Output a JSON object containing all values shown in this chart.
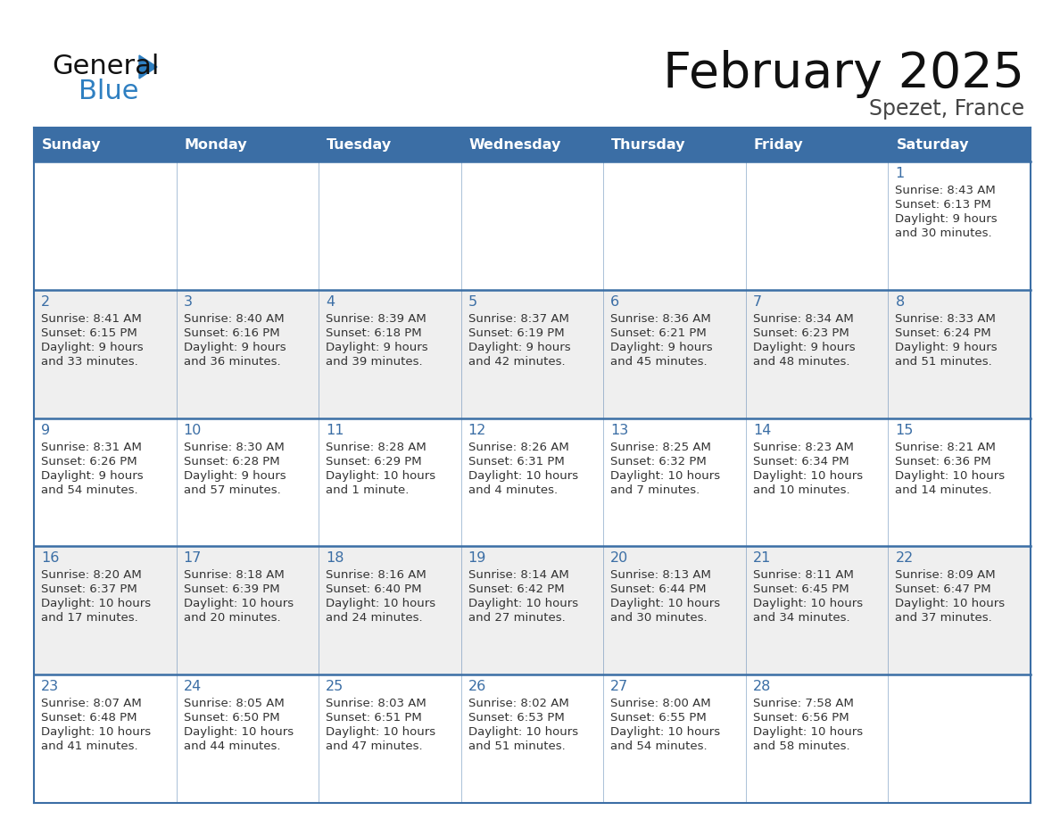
{
  "title": "February 2025",
  "subtitle": "Spezet, France",
  "header_bg": "#3b6ea5",
  "header_text_color": "#ffffff",
  "day_names": [
    "Sunday",
    "Monday",
    "Tuesday",
    "Wednesday",
    "Thursday",
    "Friday",
    "Saturday"
  ],
  "row_bg": [
    "#ffffff",
    "#efefef",
    "#ffffff",
    "#efefef",
    "#ffffff"
  ],
  "cell_border_color": "#3b6ea5",
  "date_color": "#3b6ea5",
  "text_color": "#333333",
  "logo_general_color": "#111111",
  "logo_blue_color": "#2e7fc1",
  "logo_triangle_color": "#2e7fc1",
  "calendar": [
    [
      null,
      null,
      null,
      null,
      null,
      null,
      {
        "day": "1",
        "sunrise": "8:43 AM",
        "sunset": "6:13 PM",
        "daylight_line1": "Daylight: 9 hours",
        "daylight_line2": "and 30 minutes."
      }
    ],
    [
      {
        "day": "2",
        "sunrise": "8:41 AM",
        "sunset": "6:15 PM",
        "daylight_line1": "Daylight: 9 hours",
        "daylight_line2": "and 33 minutes."
      },
      {
        "day": "3",
        "sunrise": "8:40 AM",
        "sunset": "6:16 PM",
        "daylight_line1": "Daylight: 9 hours",
        "daylight_line2": "and 36 minutes."
      },
      {
        "day": "4",
        "sunrise": "8:39 AM",
        "sunset": "6:18 PM",
        "daylight_line1": "Daylight: 9 hours",
        "daylight_line2": "and 39 minutes."
      },
      {
        "day": "5",
        "sunrise": "8:37 AM",
        "sunset": "6:19 PM",
        "daylight_line1": "Daylight: 9 hours",
        "daylight_line2": "and 42 minutes."
      },
      {
        "day": "6",
        "sunrise": "8:36 AM",
        "sunset": "6:21 PM",
        "daylight_line1": "Daylight: 9 hours",
        "daylight_line2": "and 45 minutes."
      },
      {
        "day": "7",
        "sunrise": "8:34 AM",
        "sunset": "6:23 PM",
        "daylight_line1": "Daylight: 9 hours",
        "daylight_line2": "and 48 minutes."
      },
      {
        "day": "8",
        "sunrise": "8:33 AM",
        "sunset": "6:24 PM",
        "daylight_line1": "Daylight: 9 hours",
        "daylight_line2": "and 51 minutes."
      }
    ],
    [
      {
        "day": "9",
        "sunrise": "8:31 AM",
        "sunset": "6:26 PM",
        "daylight_line1": "Daylight: 9 hours",
        "daylight_line2": "and 54 minutes."
      },
      {
        "day": "10",
        "sunrise": "8:30 AM",
        "sunset": "6:28 PM",
        "daylight_line1": "Daylight: 9 hours",
        "daylight_line2": "and 57 minutes."
      },
      {
        "day": "11",
        "sunrise": "8:28 AM",
        "sunset": "6:29 PM",
        "daylight_line1": "Daylight: 10 hours",
        "daylight_line2": "and 1 minute."
      },
      {
        "day": "12",
        "sunrise": "8:26 AM",
        "sunset": "6:31 PM",
        "daylight_line1": "Daylight: 10 hours",
        "daylight_line2": "and 4 minutes."
      },
      {
        "day": "13",
        "sunrise": "8:25 AM",
        "sunset": "6:32 PM",
        "daylight_line1": "Daylight: 10 hours",
        "daylight_line2": "and 7 minutes."
      },
      {
        "day": "14",
        "sunrise": "8:23 AM",
        "sunset": "6:34 PM",
        "daylight_line1": "Daylight: 10 hours",
        "daylight_line2": "and 10 minutes."
      },
      {
        "day": "15",
        "sunrise": "8:21 AM",
        "sunset": "6:36 PM",
        "daylight_line1": "Daylight: 10 hours",
        "daylight_line2": "and 14 minutes."
      }
    ],
    [
      {
        "day": "16",
        "sunrise": "8:20 AM",
        "sunset": "6:37 PM",
        "daylight_line1": "Daylight: 10 hours",
        "daylight_line2": "and 17 minutes."
      },
      {
        "day": "17",
        "sunrise": "8:18 AM",
        "sunset": "6:39 PM",
        "daylight_line1": "Daylight: 10 hours",
        "daylight_line2": "and 20 minutes."
      },
      {
        "day": "18",
        "sunrise": "8:16 AM",
        "sunset": "6:40 PM",
        "daylight_line1": "Daylight: 10 hours",
        "daylight_line2": "and 24 minutes."
      },
      {
        "day": "19",
        "sunrise": "8:14 AM",
        "sunset": "6:42 PM",
        "daylight_line1": "Daylight: 10 hours",
        "daylight_line2": "and 27 minutes."
      },
      {
        "day": "20",
        "sunrise": "8:13 AM",
        "sunset": "6:44 PM",
        "daylight_line1": "Daylight: 10 hours",
        "daylight_line2": "and 30 minutes."
      },
      {
        "day": "21",
        "sunrise": "8:11 AM",
        "sunset": "6:45 PM",
        "daylight_line1": "Daylight: 10 hours",
        "daylight_line2": "and 34 minutes."
      },
      {
        "day": "22",
        "sunrise": "8:09 AM",
        "sunset": "6:47 PM",
        "daylight_line1": "Daylight: 10 hours",
        "daylight_line2": "and 37 minutes."
      }
    ],
    [
      {
        "day": "23",
        "sunrise": "8:07 AM",
        "sunset": "6:48 PM",
        "daylight_line1": "Daylight: 10 hours",
        "daylight_line2": "and 41 minutes."
      },
      {
        "day": "24",
        "sunrise": "8:05 AM",
        "sunset": "6:50 PM",
        "daylight_line1": "Daylight: 10 hours",
        "daylight_line2": "and 44 minutes."
      },
      {
        "day": "25",
        "sunrise": "8:03 AM",
        "sunset": "6:51 PM",
        "daylight_line1": "Daylight: 10 hours",
        "daylight_line2": "and 47 minutes."
      },
      {
        "day": "26",
        "sunrise": "8:02 AM",
        "sunset": "6:53 PM",
        "daylight_line1": "Daylight: 10 hours",
        "daylight_line2": "and 51 minutes."
      },
      {
        "day": "27",
        "sunrise": "8:00 AM",
        "sunset": "6:55 PM",
        "daylight_line1": "Daylight: 10 hours",
        "daylight_line2": "and 54 minutes."
      },
      {
        "day": "28",
        "sunrise": "7:58 AM",
        "sunset": "6:56 PM",
        "daylight_line1": "Daylight: 10 hours",
        "daylight_line2": "and 58 minutes."
      },
      null
    ]
  ]
}
